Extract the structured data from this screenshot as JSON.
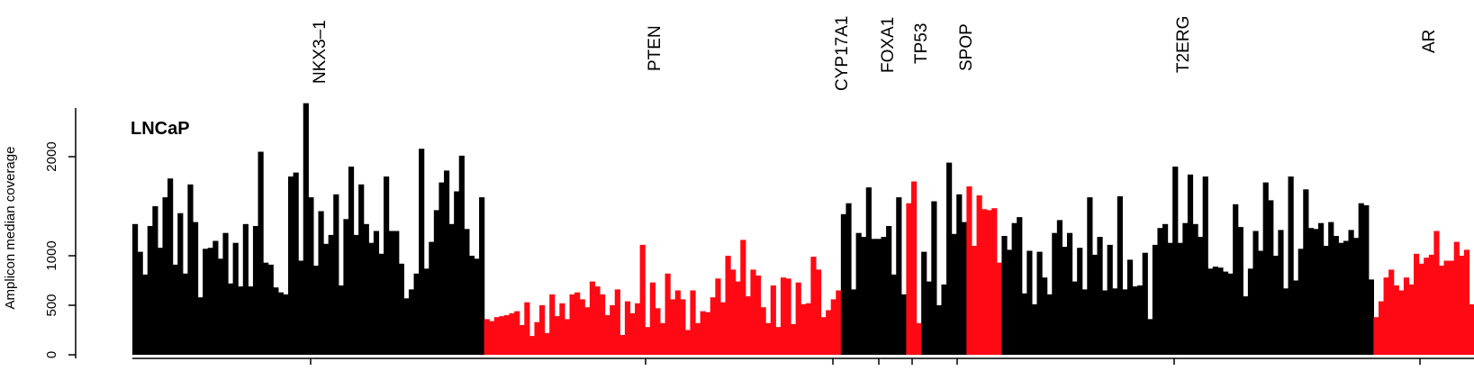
{
  "chart_data": {
    "type": "bar",
    "sample_label": "LNCaP",
    "ylabel": "Amplicon median coverage",
    "ylim": [
      0,
      2500
    ],
    "yticks": [
      0,
      500,
      1000,
      2000
    ],
    "ytick_labels": [
      "0",
      "500",
      "1000",
      "2000"
    ],
    "gene_labels": [
      "NKX3–1",
      "PTEN",
      "CYP17A1",
      "FOXA1",
      "TP53",
      "SPOP",
      "T2ERG",
      "AR"
    ],
    "colors": {
      "black": "#000000",
      "red": "#ff0a14"
    },
    "series": [
      {
        "color": "black",
        "values": [
          1320,
          1040,
          810,
          1300,
          1500,
          1080,
          1590,
          1780,
          910,
          1430,
          820,
          1720,
          1340,
          580,
          1070,
          1080,
          1150,
          970,
          1230,
          720,
          1130,
          690,
          1320,
          690,
          1300,
          2050,
          930,
          910,
          680,
          630,
          610,
          1800,
          1840,
          950,
          2540,
          1590,
          900,
          1450,
          1120,
          1210,
          1620,
          700,
          1370,
          1900,
          1210,
          1720,
          1320,
          1130,
          1250,
          1020,
          1800,
          1250,
          1250,
          920,
          570,
          660,
          820,
          2080,
          870,
          1140,
          1460,
          1740,
          1860,
          1320,
          1650,
          2010,
          1270,
          1000,
          970,
          1590
        ]
      },
      {
        "color": "red",
        "values": [
          360,
          340,
          380,
          390,
          400,
          420,
          440,
          300,
          530,
          190,
          330,
          500,
          220,
          610,
          390,
          520,
          360,
          610,
          630,
          560,
          480,
          740,
          690,
          610,
          400,
          500,
          660,
          200,
          540,
          420,
          520,
          1110,
          280,
          730,
          470,
          320,
          820,
          560,
          650,
          560,
          250,
          650,
          320,
          440,
          430,
          580,
          770,
          530,
          1000,
          860,
          740,
          1160,
          590,
          860,
          800,
          480,
          320,
          700,
          280,
          780,
          770,
          310,
          730,
          510,
          520,
          990,
          860,
          380,
          450,
          560,
          650
        ]
      },
      {
        "color": "black",
        "values": [
          1420,
          1530,
          660,
          1230,
          1190,
          1690,
          1170,
          1170,
          1190,
          1300,
          810,
          1590,
          610
        ]
      },
      {
        "color": "red",
        "values": [
          1530,
          1750,
          320
        ]
      },
      {
        "color": "black",
        "values": [
          1040,
          740,
          1550,
          500,
          710,
          1940,
          1220,
          1620,
          1340
        ]
      },
      {
        "color": "red",
        "values": [
          1700,
          1100,
          1610,
          1470,
          1460,
          1480,
          930
        ]
      },
      {
        "color": "black",
        "values": [
          1200,
          1060,
          1330,
          1390,
          620,
          1050,
          510,
          1040,
          780,
          610,
          1230,
          1360,
          1090,
          1230,
          740,
          1080,
          660,
          1590,
          1010,
          1190,
          650,
          1110,
          670,
          1600,
          660,
          960,
          690,
          700,
          1030,
          360,
          1110,
          1280,
          1320,
          1130,
          1900,
          1130,
          1330,
          1820,
          1320,
          1190,
          1800,
          870,
          890,
          880,
          840,
          820,
          1520,
          1290,
          590,
          870,
          1250,
          1050,
          1740,
          1560,
          1000,
          1260,
          670,
          1800,
          750,
          1070,
          1670,
          1280,
          1270,
          1330,
          1100,
          1340,
          1200,
          1130,
          1150,
          1260,
          1180,
          1530,
          1510,
          760
        ]
      },
      {
        "color": "red",
        "values": [
          380,
          540,
          780,
          860,
          700,
          650,
          780,
          710,
          1020,
          920,
          980,
          1010,
          1250,
          900,
          950,
          950,
          1140,
          1000,
          1060,
          510
        ]
      }
    ]
  }
}
